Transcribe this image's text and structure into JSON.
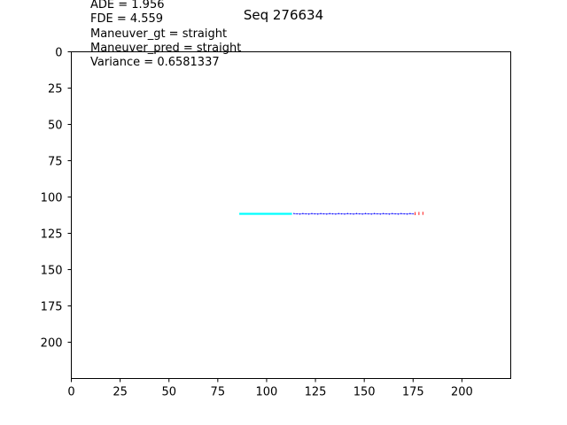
{
  "chart_data": {
    "type": "scatter",
    "title": "Seq 276634",
    "annotations": [
      "ADE = 1.956",
      "FDE = 4.559",
      "Maneuver_gt = straight",
      "Maneuver_pred = straight",
      "Variance = 0.6581337"
    ],
    "xlabel": "",
    "ylabel": "",
    "xlim": [
      0,
      225
    ],
    "ylim": [
      225,
      0
    ],
    "y_inverted": true,
    "xticks": [
      0,
      25,
      50,
      75,
      100,
      125,
      150,
      175,
      200
    ],
    "yticks": [
      0,
      25,
      50,
      75,
      100,
      125,
      150,
      175,
      200
    ],
    "grid": false,
    "series": [
      {
        "role": "history",
        "color": "#00ffff",
        "x_range": [
          86,
          113
        ],
        "y": 111.6
      },
      {
        "role": "ground_truth",
        "color": "#0000ff",
        "x_range": [
          114,
          175
        ],
        "y": 111.6
      },
      {
        "role": "prediction",
        "color": "#ff0000",
        "x": [
          176.0,
          178.0,
          180.0
        ],
        "y": [
          111.6,
          111.5,
          111.4
        ]
      }
    ]
  }
}
